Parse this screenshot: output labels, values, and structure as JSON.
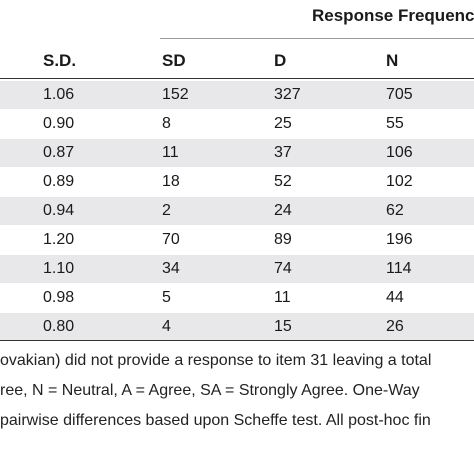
{
  "table": {
    "group_header": "Response Frequenc",
    "columns": [
      "S.D.",
      "SD",
      "D",
      "N"
    ],
    "rows": [
      [
        "1.06",
        "152",
        "327",
        "705"
      ],
      [
        "0.90",
        "8",
        "25",
        "55"
      ],
      [
        "0.87",
        "11",
        "37",
        "106"
      ],
      [
        "0.89",
        "18",
        "52",
        "102"
      ],
      [
        "0.94",
        "2",
        "24",
        "62"
      ],
      [
        "1.20",
        "70",
        "89",
        "196"
      ],
      [
        "1.10",
        "34",
        "74",
        "114"
      ],
      [
        "0.98",
        "5",
        "11",
        "44"
      ],
      [
        "0.80",
        "4",
        "15",
        "26"
      ]
    ],
    "shaded_row_color": "#e8e8ea"
  },
  "footnotes": [
    "ovakian) did not provide a response to item 31 leaving a total",
    "ree, N = Neutral, A = Agree, SA = Strongly Agree. One-Way",
    "pairwise differences based upon Scheffe test. All post-hoc fin"
  ]
}
